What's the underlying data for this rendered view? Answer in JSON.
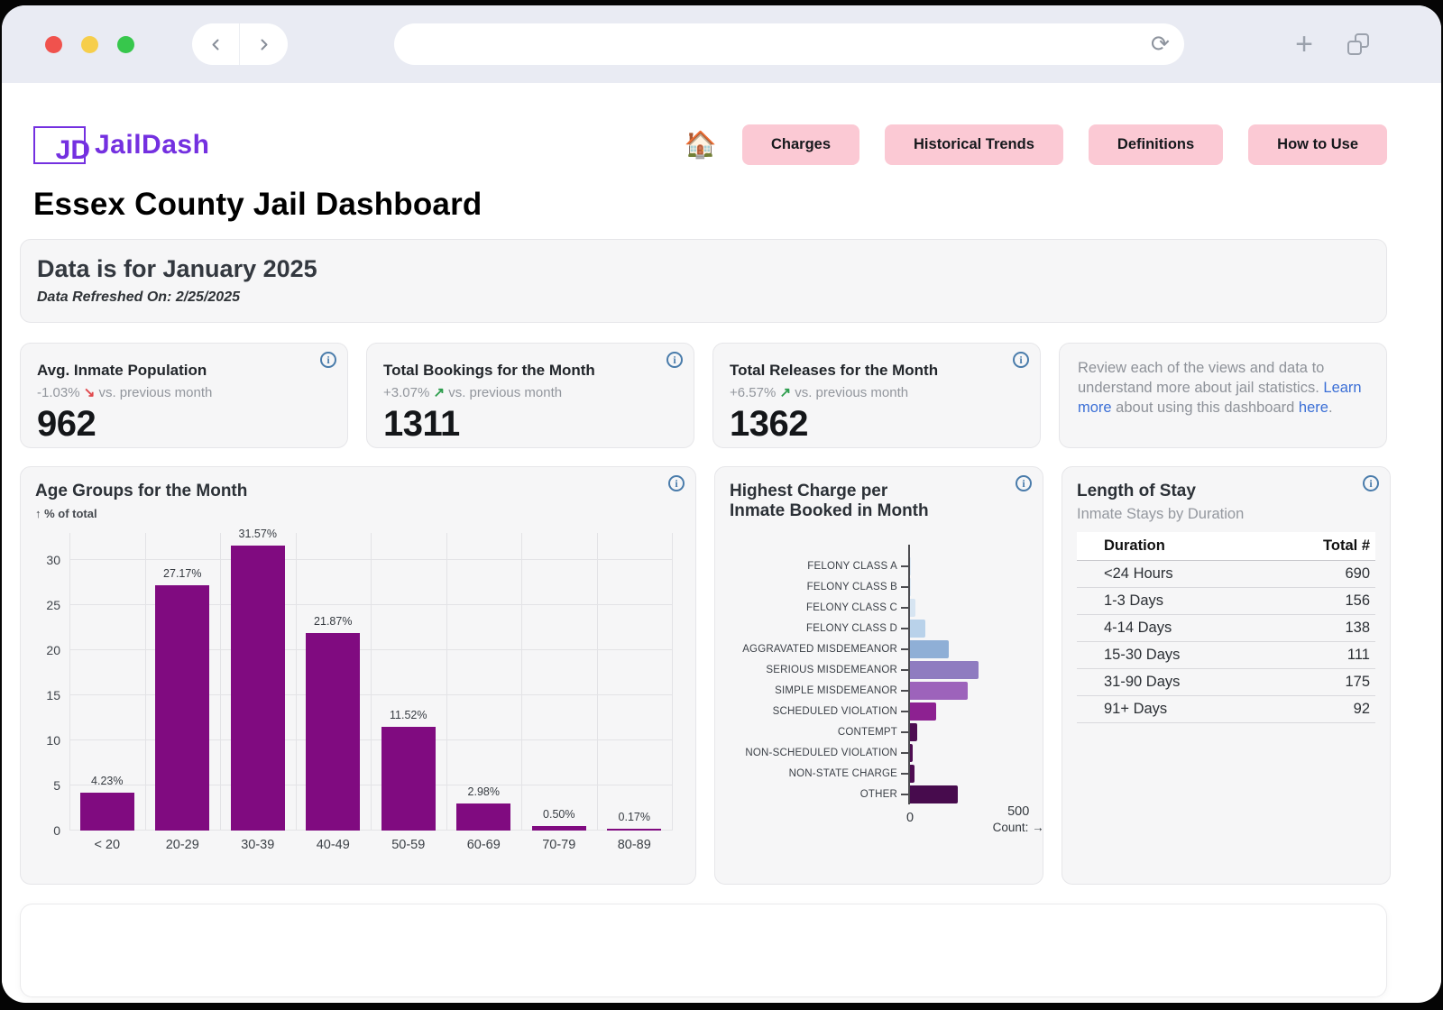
{
  "browser": {
    "icons": {
      "back": "chevron-left",
      "forward": "chevron-right",
      "reload": "⟳",
      "new_tab": "+",
      "tab_overview": "overlapping-squares",
      "info": "i"
    }
  },
  "header": {
    "logo": {
      "monogram": "JD",
      "name": "JailDash"
    },
    "home_icon": "🏠",
    "nav": [
      {
        "label": "Charges"
      },
      {
        "label": "Historical Trends"
      },
      {
        "label": "Definitions"
      },
      {
        "label": "How to Use"
      }
    ]
  },
  "page_title": "Essex County Jail Dashboard",
  "banner": {
    "title": "Data is for January 2025",
    "refreshed": "Data Refreshed On: 2/25/2025"
  },
  "kpis": [
    {
      "title": "Avg. Inmate Population",
      "delta": "-1.03%",
      "arrow": "↘",
      "trend": "down",
      "note": "vs. previous month",
      "value": "962"
    },
    {
      "title": "Total Bookings for the Month",
      "delta": "+3.07%",
      "arrow": "↗",
      "trend": "up",
      "note": "vs. previous month",
      "value": "1311"
    },
    {
      "title": "Total Releases for the Month",
      "delta": "+6.57%",
      "arrow": "↗",
      "trend": "up",
      "note": "vs. previous month",
      "value": "1362"
    }
  ],
  "info_panel": {
    "text_before": "Review each of the views and data to understand more about jail statistics. ",
    "link1": "Learn more",
    "text_mid": " about using this dashboard ",
    "link2": "here",
    "text_after": "."
  },
  "colors": {
    "accent_purple": "#7430e0",
    "nav_pink": "#fbc9d4",
    "link_blue": "#3b6fd6",
    "info_icon_blue": "#4a7cab",
    "trend_up_green": "#2f9e4f",
    "trend_down_red": "#e0484c",
    "age_bar_purple": "#800b80"
  },
  "chart_data": [
    {
      "type": "bar",
      "title": "Age Groups for the Month",
      "ylabel": "↑ % of total",
      "categories": [
        "< 20",
        "20-29",
        "30-39",
        "40-49",
        "50-59",
        "60-69",
        "70-79",
        "80-89"
      ],
      "values": [
        4.23,
        27.17,
        31.57,
        21.87,
        11.52,
        2.98,
        0.5,
        0.17
      ],
      "labels": [
        "4.23%",
        "27.17%",
        "31.57%",
        "21.87%",
        "11.52%",
        "2.98%",
        "0.50%",
        "0.17%"
      ],
      "yticks": [
        0,
        5,
        10,
        15,
        20,
        25,
        30
      ],
      "ylim": [
        0,
        33
      ],
      "bar_color": "#800b80",
      "grid": true,
      "legend": "none"
    },
    {
      "type": "bar",
      "orientation": "horizontal",
      "title_lines": [
        "Highest Charge per",
        "Inmate Booked in Month"
      ],
      "categories": [
        "FELONY CLASS A",
        "FELONY CLASS B",
        "FELONY CLASS C",
        "FELONY CLASS D",
        "AGGRAVATED MISDEMEANOR",
        "SERIOUS MISDEMEANOR",
        "SIMPLE MISDEMEANOR",
        "SCHEDULED VIOLATION",
        "CONTEMPT",
        "NON-SCHEDULED VIOLATION",
        "NON-STATE CHARGE",
        "OTHER"
      ],
      "values": [
        1,
        3,
        25,
        70,
        180,
        315,
        265,
        120,
        33,
        12,
        20,
        220
      ],
      "colors": [
        "#dbe8f4",
        "#dbe8f4",
        "#d7e5f2",
        "#b9d2ea",
        "#8fafd6",
        "#8f7cc0",
        "#9d63bb",
        "#8d2191",
        "#4e0d52",
        "#4e0d52",
        "#4e0d52",
        "#470b4d"
      ],
      "xticks": [
        0,
        500
      ],
      "xtick_labels": [
        "0",
        "500"
      ],
      "xlabel": "Count: →",
      "xlim": [
        0,
        545
      ],
      "grid": false,
      "legend": "none"
    },
    {
      "type": "table",
      "title": "Length of Stay",
      "subtitle": "Inmate Stays by Duration",
      "columns": [
        "Duration",
        "Total #"
      ],
      "rows": [
        [
          "<24 Hours",
          "690"
        ],
        [
          "1-3 Days",
          "156"
        ],
        [
          "4-14 Days",
          "138"
        ],
        [
          "15-30 Days",
          "111"
        ],
        [
          "31-90 Days",
          "175"
        ],
        [
          "91+ Days",
          "92"
        ]
      ]
    }
  ]
}
